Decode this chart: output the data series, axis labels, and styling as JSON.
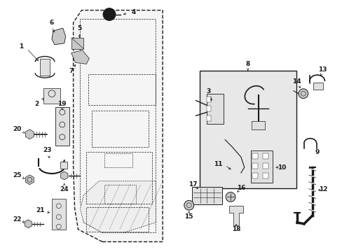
{
  "bg_color": "#ffffff",
  "line_color": "#1a1a1a",
  "gray_fill": "#c8c8c8",
  "light_gray": "#e0e0e0",
  "box_gray": "#e8e8e8",
  "figsize": [
    4.89,
    3.6
  ],
  "dpi": 100
}
